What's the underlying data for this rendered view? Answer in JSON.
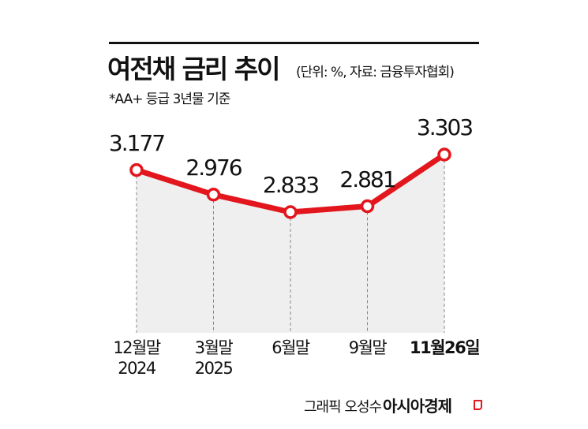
{
  "header": {
    "title": "여전채 금리 추이",
    "unit_source": "(단위: %, 자료: 금융투자협회)",
    "note": "*AA+ 등급 3년물 기준"
  },
  "footer": {
    "credit": "그래픽 오성수",
    "brand": "아시아경제"
  },
  "colors": {
    "line": "#e2161c",
    "fill": "#efefef",
    "text": "#111111",
    "gridline": "#888888"
  },
  "chart_data": {
    "type": "line",
    "title": "여전채 금리 추이",
    "subtitle": "*AA+ 등급 3년물 기준",
    "unit": "%",
    "source": "금융투자협회",
    "categories": [
      "12월말 2024",
      "3월말 2025",
      "6월말",
      "9월말",
      "11월26일"
    ],
    "x_labels": [
      {
        "line1": "12월말",
        "line2": "2024"
      },
      {
        "line1": "3월말",
        "line2": "2025"
      },
      {
        "line1": "6월말",
        "line2": ""
      },
      {
        "line1": "9월말",
        "line2": ""
      },
      {
        "line1": "11월26일",
        "line2": ""
      }
    ],
    "series": [
      {
        "name": "여전채 금리 (AA+ 3년물)",
        "values": [
          3.177,
          2.976,
          2.833,
          2.881,
          3.303
        ]
      }
    ],
    "value_labels": [
      "3.177",
      "2.976",
      "2.833",
      "2.881",
      "3.303"
    ],
    "xlabel": "",
    "ylabel": "",
    "grid": false,
    "legend": "none",
    "area_fill": true
  }
}
